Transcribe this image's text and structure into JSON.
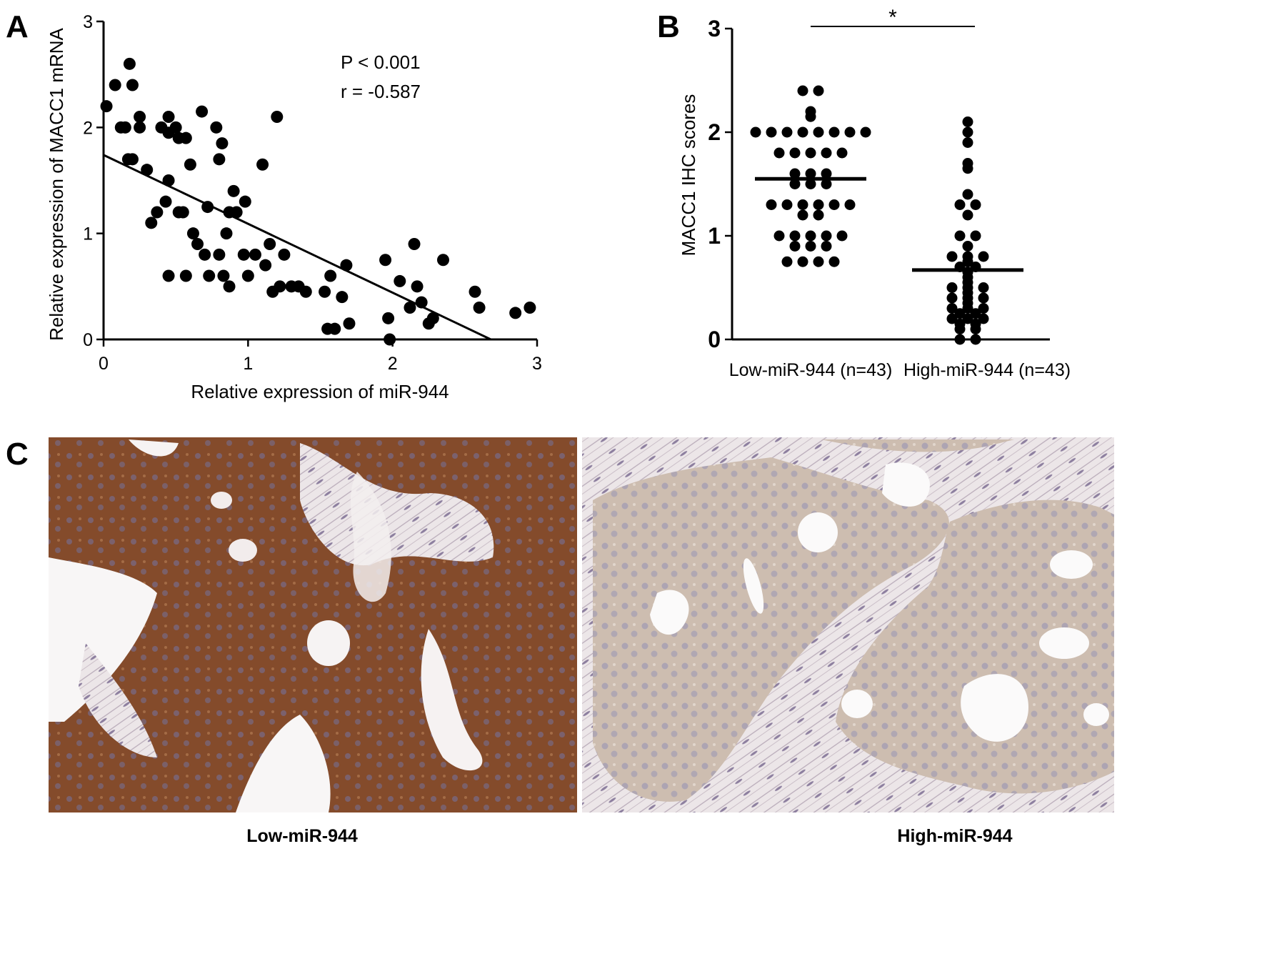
{
  "panel_labels": {
    "a": "A",
    "b": "B",
    "c": "C"
  },
  "chart_data": [
    {
      "panel": "A",
      "type": "scatter",
      "xlabel": "Relative expression of miR-944",
      "ylabel": "Relative expression of MACC1 mRNA",
      "xlim": [
        0,
        3
      ],
      "ylim": [
        0,
        3
      ],
      "xticks": [
        "0",
        "1",
        "2",
        "3"
      ],
      "yticks": [
        "0",
        "1",
        "2",
        "3"
      ],
      "annotations": [
        "P < 0.001",
        "r = -0.587"
      ],
      "regression_line": {
        "x": [
          0,
          2.68
        ],
        "y": [
          1.74,
          0
        ]
      },
      "points": [
        [
          0.02,
          2.2
        ],
        [
          0.08,
          2.4
        ],
        [
          0.12,
          2.0
        ],
        [
          0.15,
          2.0
        ],
        [
          0.17,
          1.7
        ],
        [
          0.18,
          2.6
        ],
        [
          0.2,
          1.7
        ],
        [
          0.2,
          2.4
        ],
        [
          0.25,
          2.0
        ],
        [
          0.25,
          2.1
        ],
        [
          0.3,
          1.6
        ],
        [
          0.33,
          1.1
        ],
        [
          0.37,
          1.2
        ],
        [
          0.4,
          2.0
        ],
        [
          0.43,
          1.3
        ],
        [
          0.45,
          2.1
        ],
        [
          0.45,
          1.95
        ],
        [
          0.45,
          1.5
        ],
        [
          0.45,
          0.6
        ],
        [
          0.5,
          2.0
        ],
        [
          0.52,
          1.9
        ],
        [
          0.52,
          1.2
        ],
        [
          0.55,
          1.2
        ],
        [
          0.57,
          1.9
        ],
        [
          0.57,
          0.6
        ],
        [
          0.6,
          1.65
        ],
        [
          0.62,
          1.0
        ],
        [
          0.65,
          0.9
        ],
        [
          0.68,
          2.15
        ],
        [
          0.7,
          0.8
        ],
        [
          0.72,
          1.25
        ],
        [
          0.73,
          0.6
        ],
        [
          0.78,
          2.0
        ],
        [
          0.8,
          1.7
        ],
        [
          0.8,
          0.8
        ],
        [
          0.82,
          1.85
        ],
        [
          0.83,
          0.6
        ],
        [
          0.85,
          1.0
        ],
        [
          0.87,
          1.2
        ],
        [
          0.87,
          0.5
        ],
        [
          0.9,
          1.4
        ],
        [
          0.92,
          1.2
        ],
        [
          0.97,
          0.8
        ],
        [
          0.98,
          1.3
        ],
        [
          1.0,
          0.6
        ],
        [
          1.05,
          0.8
        ],
        [
          1.1,
          1.65
        ],
        [
          1.12,
          0.7
        ],
        [
          1.15,
          0.9
        ],
        [
          1.17,
          0.45
        ],
        [
          1.2,
          2.1
        ],
        [
          1.22,
          0.5
        ],
        [
          1.25,
          0.8
        ],
        [
          1.3,
          0.5
        ],
        [
          1.35,
          0.5
        ],
        [
          1.4,
          0.45
        ],
        [
          1.53,
          0.45
        ],
        [
          1.55,
          0.1
        ],
        [
          1.57,
          0.6
        ],
        [
          1.6,
          0.1
        ],
        [
          1.65,
          0.4
        ],
        [
          1.68,
          0.7
        ],
        [
          1.7,
          0.15
        ],
        [
          1.95,
          0.75
        ],
        [
          1.97,
          0.2
        ],
        [
          1.98,
          0.0
        ],
        [
          2.05,
          0.55
        ],
        [
          2.12,
          0.3
        ],
        [
          2.15,
          0.9
        ],
        [
          2.17,
          0.5
        ],
        [
          2.2,
          0.35
        ],
        [
          2.25,
          0.15
        ],
        [
          2.28,
          0.2
        ],
        [
          2.35,
          0.75
        ],
        [
          2.57,
          0.45
        ],
        [
          2.6,
          0.3
        ],
        [
          2.85,
          0.25
        ],
        [
          2.95,
          0.3
        ]
      ]
    },
    {
      "panel": "B",
      "type": "scatter",
      "ylabel": "MACC1 IHC scores",
      "ylim": [
        0,
        3
      ],
      "yticks": [
        "0",
        "1",
        "2",
        "3"
      ],
      "categories": [
        "Low-miR-944 (n=43)",
        "High-miR-944 (n=43)"
      ],
      "significance": "*",
      "series": [
        {
          "name": "Low-miR-944 (n=43)",
          "mean": 1.55,
          "values": [
            2.4,
            2.4,
            2.2,
            2.15,
            2.0,
            2.0,
            2.0,
            2.0,
            2.0,
            2.0,
            2.0,
            2.0,
            1.8,
            1.8,
            1.8,
            1.8,
            1.8,
            1.6,
            1.6,
            1.6,
            1.5,
            1.5,
            1.5,
            1.3,
            1.3,
            1.3,
            1.3,
            1.3,
            1.3,
            1.2,
            1.2,
            1.0,
            1.0,
            1.0,
            1.0,
            1.0,
            0.9,
            0.9,
            0.9,
            0.75,
            0.75,
            0.75,
            0.75
          ]
        },
        {
          "name": "High-miR-944 (n=43)",
          "mean": 0.67,
          "values": [
            2.1,
            2.0,
            1.9,
            1.7,
            1.65,
            1.4,
            1.3,
            1.3,
            1.2,
            1.0,
            1.0,
            0.9,
            0.8,
            0.8,
            0.8,
            0.75,
            0.7,
            0.7,
            0.65,
            0.6,
            0.55,
            0.5,
            0.5,
            0.5,
            0.45,
            0.4,
            0.4,
            0.4,
            0.35,
            0.3,
            0.3,
            0.3,
            0.25,
            0.25,
            0.2,
            0.2,
            0.2,
            0.15,
            0.15,
            0.1,
            0.1,
            0.0,
            0.0
          ]
        }
      ]
    }
  ],
  "panel_c": {
    "left_caption": "Low-miR-944",
    "right_caption": "High-miR-944",
    "colors": {
      "low_background": "#8a5230",
      "high_background": "#d9cdc3",
      "stroma": "#e6e0e3",
      "nuclei": "#6a6c9a"
    }
  }
}
